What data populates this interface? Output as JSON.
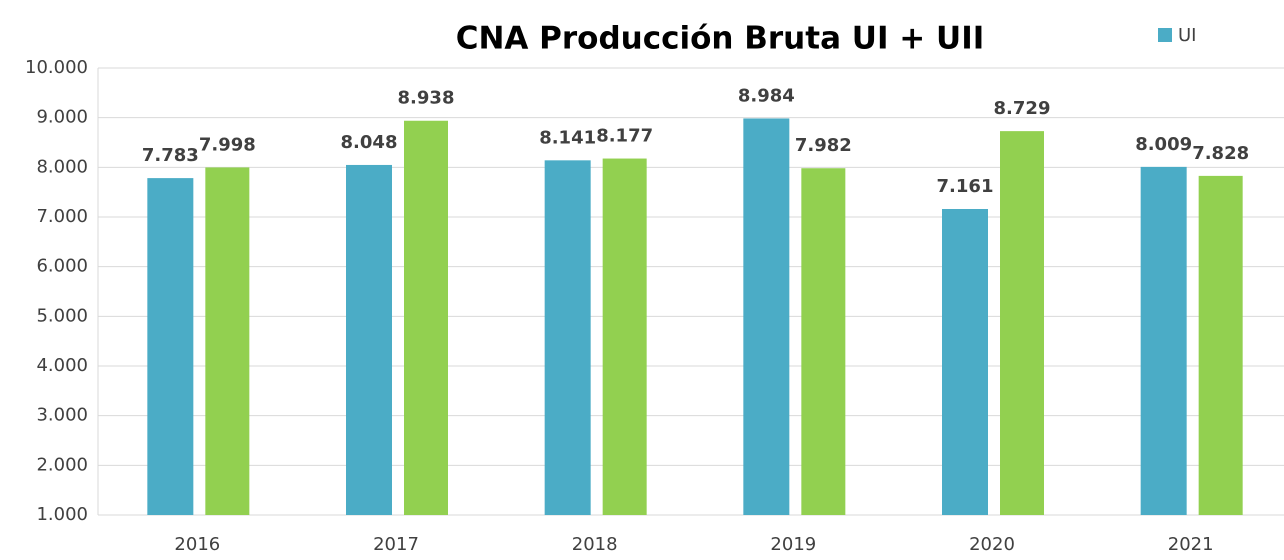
{
  "chart_data": {
    "type": "bar",
    "title": "CNA Producción Bruta UI + UII",
    "categories": [
      "2016",
      "2017",
      "2018",
      "2019",
      "2020",
      "2021"
    ],
    "series": [
      {
        "name": "UI",
        "color": "#4bacc6",
        "values": [
          7783,
          8048,
          8141,
          8984,
          7161,
          8009
        ],
        "value_labels": [
          "7.783",
          "8.048",
          "8.141",
          "8.984",
          "7.161",
          "8.009"
        ]
      },
      {
        "color": "#92d050",
        "values": [
          7998,
          8938,
          8177,
          7982,
          8729,
          7828
        ],
        "value_labels": [
          "7.998",
          "8.938",
          "8.177",
          "7.982",
          "8.729",
          "7.828"
        ]
      }
    ],
    "ylim": [
      1000,
      10000
    ],
    "yticks": [
      {
        "value": 1000,
        "label": "1.000"
      },
      {
        "value": 2000,
        "label": "2.000"
      },
      {
        "value": 3000,
        "label": "3.000"
      },
      {
        "value": 4000,
        "label": "4.000"
      },
      {
        "value": 5000,
        "label": "5.000"
      },
      {
        "value": 6000,
        "label": "6.000"
      },
      {
        "value": 7000,
        "label": "7.000"
      },
      {
        "value": 8000,
        "label": "8.000"
      },
      {
        "value": 9000,
        "label": "9.000"
      },
      {
        "value": 10000,
        "label": "10.000"
      }
    ],
    "grid": true,
    "legend": "top-right"
  }
}
